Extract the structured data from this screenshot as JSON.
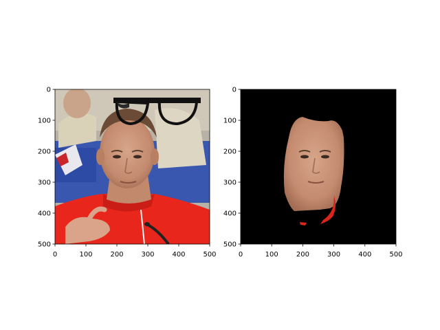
{
  "chart_data": [
    {
      "type": "image",
      "content": "photo of a man in a red shirt with a pair of black glasses overlaid above his head",
      "xlim": [
        0,
        500
      ],
      "ylim": [
        500,
        0
      ],
      "xticks": [
        0,
        100,
        200,
        300,
        400,
        500
      ],
      "yticks": [
        0,
        100,
        200,
        300,
        400,
        500
      ],
      "xtick_labels": [
        "0",
        "100",
        "200",
        "300",
        "400",
        "500"
      ],
      "ytick_labels": [
        "0",
        "100",
        "200",
        "300",
        "400",
        "500"
      ]
    },
    {
      "type": "image",
      "content": "segmented face region of the same man on a black background",
      "xlim": [
        0,
        500
      ],
      "ylim": [
        500,
        0
      ],
      "xticks": [
        0,
        100,
        200,
        300,
        400,
        500
      ],
      "yticks": [
        0,
        100,
        200,
        300,
        400,
        500
      ],
      "xtick_labels": [
        "0",
        "100",
        "200",
        "300",
        "400",
        "500"
      ],
      "ytick_labels": [
        "0",
        "100",
        "200",
        "300",
        "400",
        "500"
      ]
    }
  ],
  "colors": {
    "shirt": "#e8261c",
    "skin": "#c98f72",
    "background_masked": "#000000",
    "glasses": "#111111",
    "backdrop_blue": "#3a57b0"
  }
}
